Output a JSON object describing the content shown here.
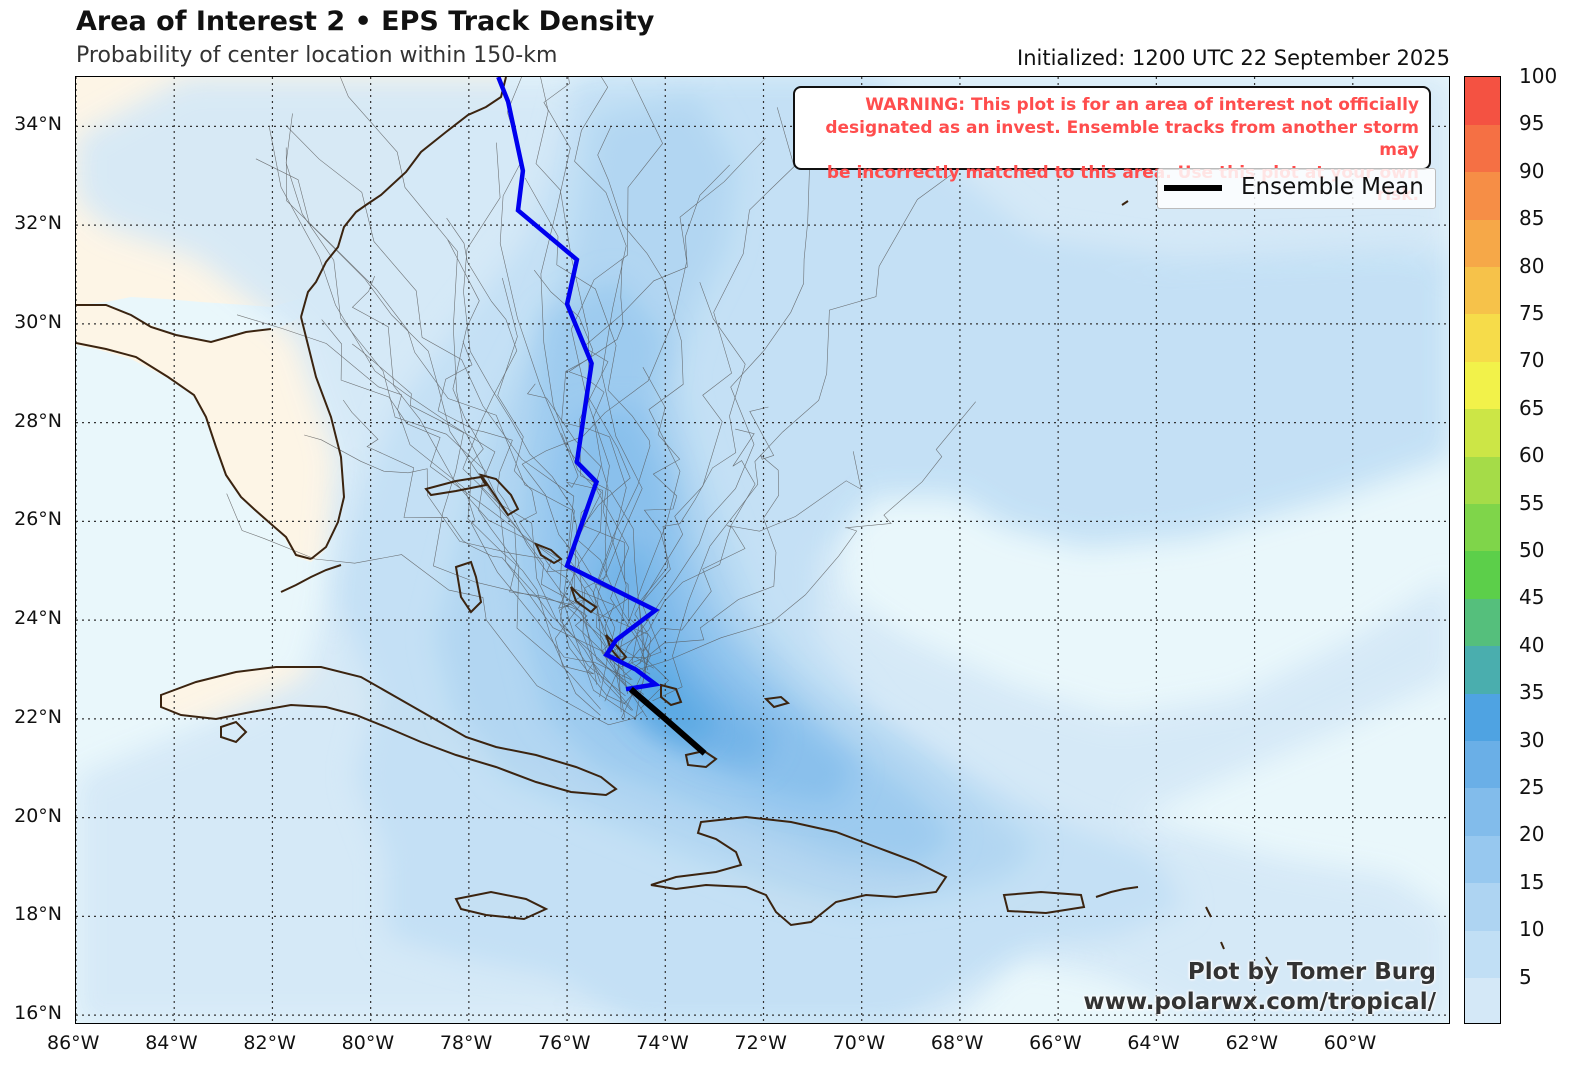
{
  "header": {
    "title": "Area of Interest 2 • EPS Track Density",
    "subtitle": "Probability of center location within 150-km",
    "initialized": "Initialized: 1200 UTC 22 September 2025"
  },
  "warning": {
    "line1": "WARNING: This plot is for an area of interest not officially",
    "line2": "designated as an invest. Ensemble tracks from another storm may",
    "line3": "be incorrectly matched to this area. Use this plot at your own risk."
  },
  "legend": {
    "ensemble_mean_label": "Ensemble Mean"
  },
  "credit": {
    "line1": "Plot by Tomer Burg",
    "line2": "www.polarwx.com/tropical/"
  },
  "axes": {
    "lat_labels": [
      {
        "lat": 34,
        "label": "34°N"
      },
      {
        "lat": 32,
        "label": "32°N"
      },
      {
        "lat": 30,
        "label": "30°N"
      },
      {
        "lat": 28,
        "label": "28°N"
      },
      {
        "lat": 26,
        "label": "26°N"
      },
      {
        "lat": 24,
        "label": "24°N"
      },
      {
        "lat": 22,
        "label": "22°N"
      },
      {
        "lat": 20,
        "label": "20°N"
      },
      {
        "lat": 18,
        "label": "18°N"
      },
      {
        "lat": 16,
        "label": "16°N"
      }
    ],
    "lon_labels": [
      {
        "lon": -86,
        "label": "86°W"
      },
      {
        "lon": -84,
        "label": "84°W"
      },
      {
        "lon": -82,
        "label": "82°W"
      },
      {
        "lon": -80,
        "label": "80°W"
      },
      {
        "lon": -78,
        "label": "78°W"
      },
      {
        "lon": -76,
        "label": "76°W"
      },
      {
        "lon": -74,
        "label": "74°W"
      },
      {
        "lon": -72,
        "label": "72°W"
      },
      {
        "lon": -70,
        "label": "70°W"
      },
      {
        "lon": -68,
        "label": "68°W"
      },
      {
        "lon": -66,
        "label": "66°W"
      },
      {
        "lon": -64,
        "label": "64°W"
      },
      {
        "lon": -62,
        "label": "62°W"
      },
      {
        "lon": -60,
        "label": "60°W"
      }
    ],
    "lon_range": [
      -86,
      -58
    ],
    "lat_range": [
      15.8,
      35.0
    ],
    "gridlines": "dotted"
  },
  "colorbar": {
    "levels": [
      0,
      5,
      10,
      15,
      20,
      25,
      30,
      35,
      40,
      45,
      50,
      55,
      60,
      65,
      70,
      75,
      80,
      85,
      90,
      95,
      100
    ],
    "tick_labels": [
      "5",
      "10",
      "15",
      "20",
      "25",
      "30",
      "35",
      "40",
      "45",
      "50",
      "55",
      "60",
      "65",
      "70",
      "75",
      "80",
      "85",
      "90",
      "95",
      "100"
    ],
    "colors": [
      "#d4e8f7",
      "#c1dff5",
      "#aed4f2",
      "#97c8ef",
      "#82bceb",
      "#6aafe7",
      "#4fa3e2",
      "#4aaeae",
      "#55bf7c",
      "#5ccf4a",
      "#7fd54a",
      "#a5dc48",
      "#cce646",
      "#f2f24a",
      "#f6dc4a",
      "#f6c24a",
      "#f6a848",
      "#f68e46",
      "#f57044",
      "#f45242"
    ]
  },
  "colors": {
    "land": "#fdf5e6",
    "ocean": "#e9f7fb",
    "coast": "#3b2410",
    "mean_track": "#0000ee",
    "ensemble_mean_line": "#000000",
    "member_track": "#444444",
    "warning_text": "#ff4d4d"
  },
  "tracks": {
    "ensemble_mean_blue": [
      [
        -74.8,
        22.6
      ],
      [
        -74.2,
        22.7
      ],
      [
        -74.6,
        23.0
      ],
      [
        -75.2,
        23.3
      ],
      [
        -75.0,
        23.6
      ],
      [
        -74.2,
        24.2
      ],
      [
        -76.0,
        25.1
      ],
      [
        -75.4,
        26.8
      ],
      [
        -75.8,
        27.2
      ],
      [
        -75.5,
        29.2
      ],
      [
        -76.0,
        30.4
      ],
      [
        -75.8,
        31.3
      ],
      [
        -77.0,
        32.3
      ],
      [
        -76.9,
        33.1
      ],
      [
        -77.2,
        34.5
      ],
      [
        -77.4,
        35.0
      ]
    ],
    "ensemble_mean_black": [
      [
        -74.7,
        22.6
      ],
      [
        -74.0,
        22.0
      ],
      [
        -73.2,
        21.3
      ]
    ]
  }
}
